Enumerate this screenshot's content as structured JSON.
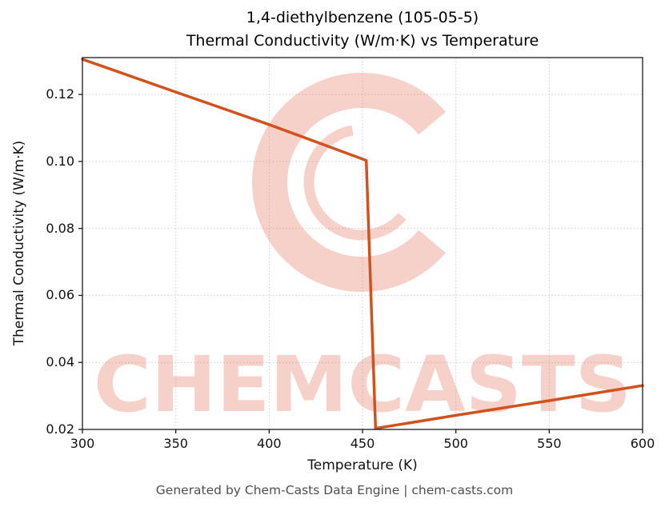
{
  "title": {
    "line1": "1,4-diethylbenzene (105-05-5)",
    "line2": "Thermal Conductivity (W/m·K) vs Temperature"
  },
  "footer": "Generated by Chem-Casts Data Engine | chem-casts.com",
  "watermark": {
    "text": "CHEMCASTS",
    "color": "#e05a3c",
    "opacity": 0.27
  },
  "chart_data": {
    "type": "line",
    "title": "1,4-diethylbenzene (105-05-5) Thermal Conductivity (W/m·K) vs Temperature",
    "xlabel": "Temperature (K)",
    "ylabel": "Thermal Conductivity (W/m·K)",
    "xlim": [
      300,
      600
    ],
    "ylim": [
      0.02,
      0.131
    ],
    "xticks": [
      300,
      350,
      400,
      450,
      500,
      550,
      600
    ],
    "xtick_labels": [
      "300",
      "350",
      "400",
      "450",
      "500",
      "550",
      "600"
    ],
    "yticks": [
      0.02,
      0.04,
      0.06,
      0.08,
      0.1,
      0.12
    ],
    "ytick_labels": [
      "0.02",
      "0.04",
      "0.06",
      "0.08",
      "0.10",
      "0.12"
    ],
    "grid": true,
    "legend": "none",
    "line_color": "#d2521e",
    "line_width": 3.5,
    "series": [
      {
        "name": "thermal_conductivity_W_per_mK",
        "points": [
          [
            300,
            0.1305
          ],
          [
            350,
            0.1207
          ],
          [
            400,
            0.111
          ],
          [
            452,
            0.1003
          ],
          [
            457,
            0.0203
          ],
          [
            500,
            0.0242
          ],
          [
            550,
            0.0286
          ],
          [
            600,
            0.0331
          ]
        ]
      }
    ]
  }
}
